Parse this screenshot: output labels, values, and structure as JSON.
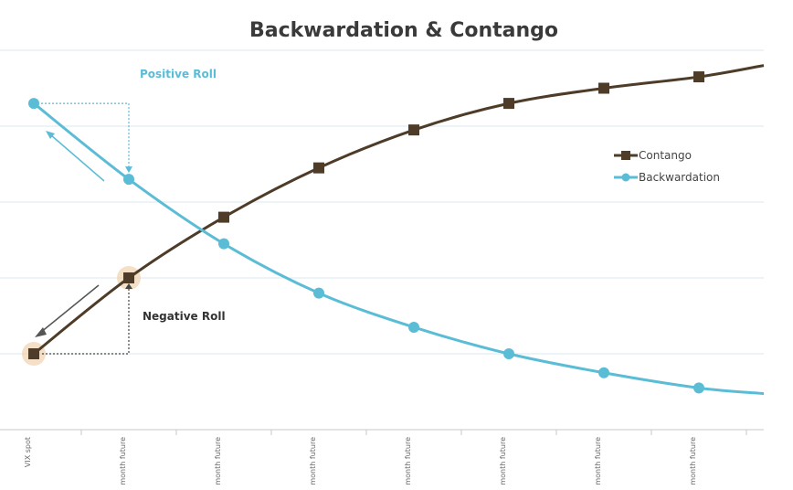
{
  "chart_data": {
    "type": "line",
    "title": "Backwardation & Contango",
    "xlabel": "",
    "ylabel": "",
    "categories": [
      "VIX spot",
      "month future",
      "month future",
      "month future",
      "month future",
      "month future",
      "month future",
      "month future"
    ],
    "ylim": [
      0,
      100
    ],
    "grid": true,
    "legend": "right",
    "series": [
      {
        "name": "Contango",
        "color": "#4e3c28",
        "marker": "square",
        "values": [
          20,
          40,
          56,
          69,
          79,
          86,
          90,
          93
        ],
        "extend_to": 96
      },
      {
        "name": "Backwardation",
        "color": "#5bbcd6",
        "marker": "circle",
        "values": [
          86,
          66,
          49,
          36,
          27,
          20,
          15,
          11
        ],
        "extend_to": 9.5
      }
    ],
    "annotations": {
      "positive": "Positive Roll",
      "negative": "Negative Roll"
    }
  }
}
